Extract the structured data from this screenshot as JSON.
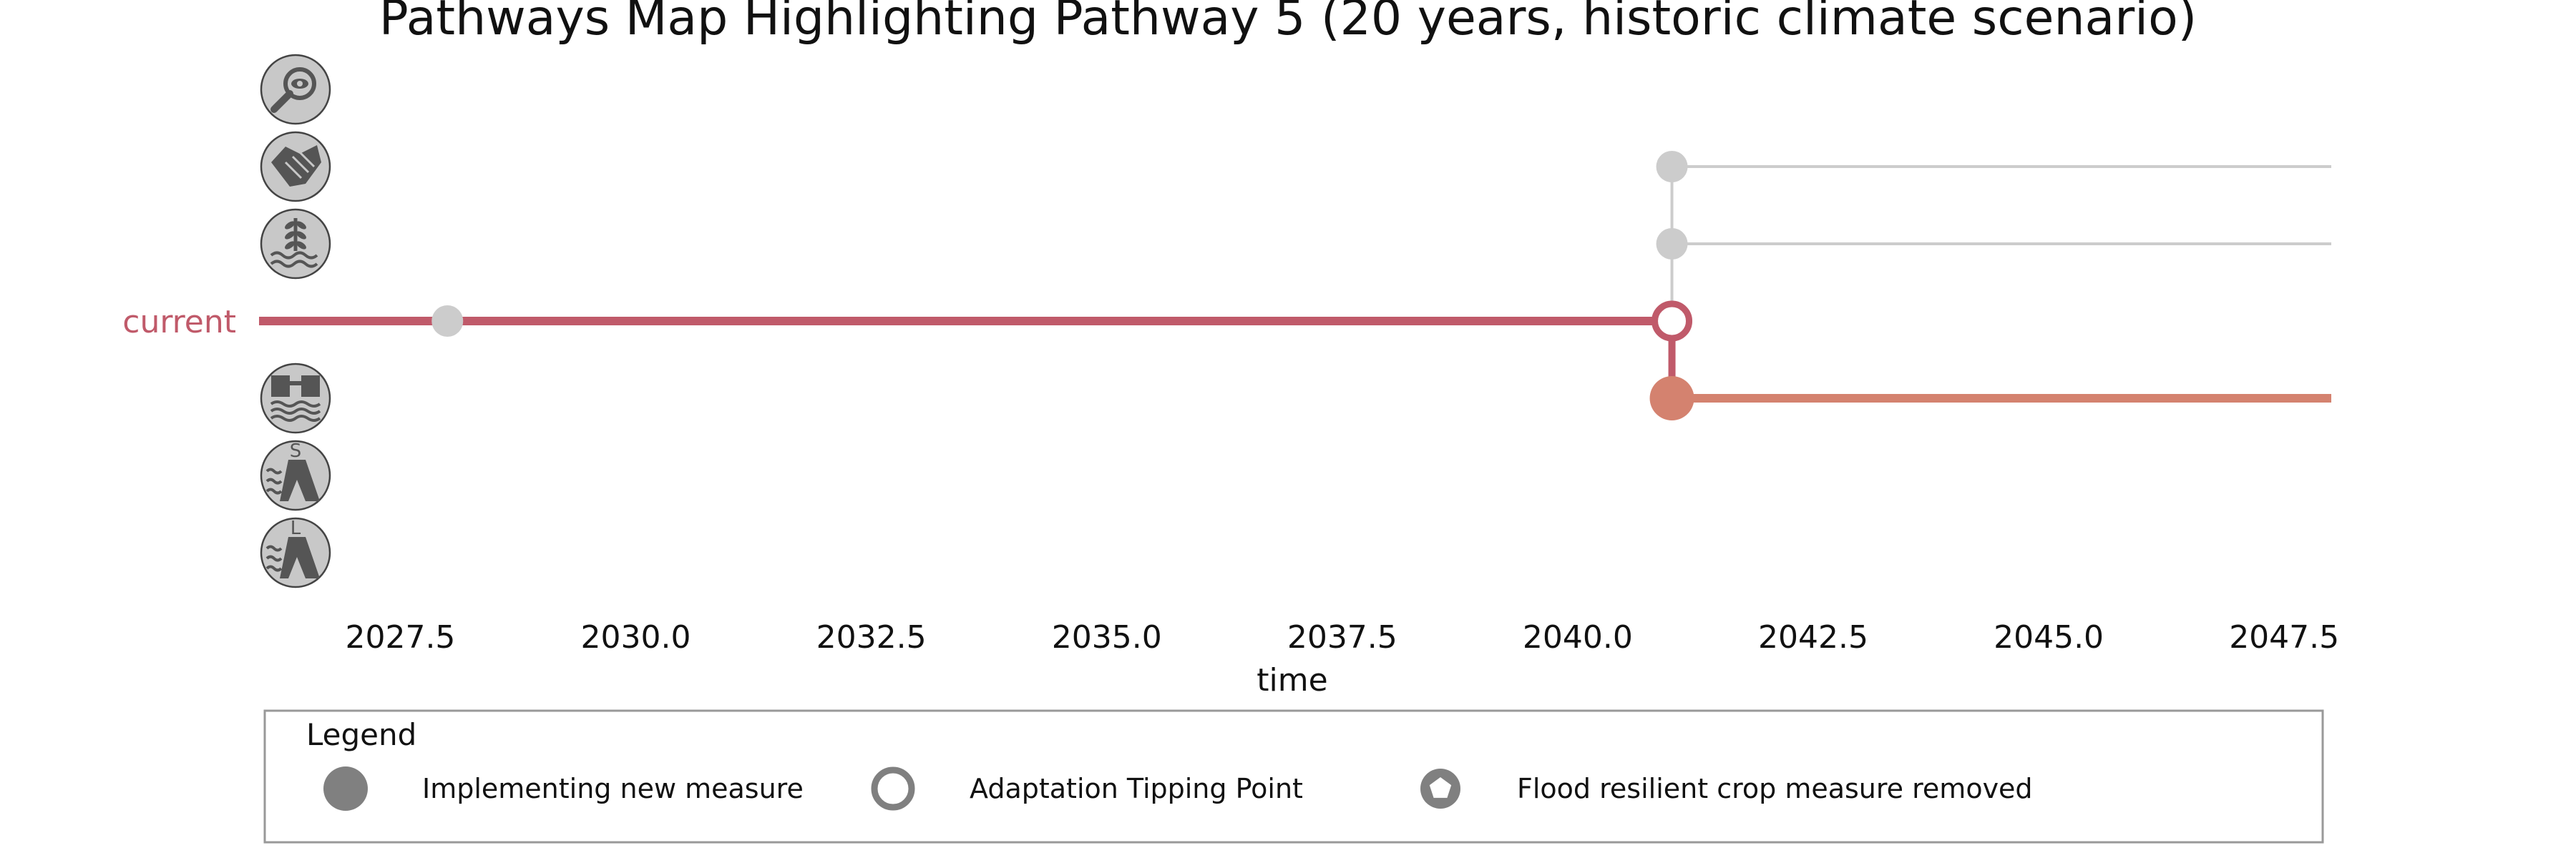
{
  "chart_data": {
    "type": "line",
    "title": "Pathways Map Highlighting Pathway 5 (20 years, historic climate scenario)",
    "xlabel": "time",
    "ylabel": "",
    "xlim": [
      2026.0,
      2048.0
    ],
    "x_ticks": [
      "2027.5",
      "2030.0",
      "2032.5",
      "2035.0",
      "2037.5",
      "2040.0",
      "2042.5",
      "2045.0",
      "2047.5"
    ],
    "x_tick_values": [
      2027.5,
      2030.0,
      2032.5,
      2035.0,
      2037.5,
      2040.0,
      2042.5,
      2045.0,
      2047.5
    ],
    "current_label": "current",
    "rows": [
      {
        "key": "monitoring",
        "icon": "magnifier-eye-icon"
      },
      {
        "key": "cooperation",
        "icon": "handshake-icon"
      },
      {
        "key": "flood_resilient_crops",
        "icon": "crop-water-icon"
      },
      {
        "key": "current",
        "icon": null
      },
      {
        "key": "floodwall",
        "icon": "floodwall-icon"
      },
      {
        "key": "small_dike",
        "icon": "small-dike-icon",
        "icon_letter": "S"
      },
      {
        "key": "large_dike",
        "icon": "large-dike-icon",
        "icon_letter": "L"
      }
    ],
    "segments": [
      {
        "row": "current",
        "x": [
          2026.0,
          2041.0
        ],
        "color": "#c05a6a",
        "highlight": true
      },
      {
        "row": "cooperation",
        "x": [
          2041.0,
          2048.0
        ],
        "color": "#cccccc",
        "highlight": false
      },
      {
        "row": "flood_resilient_crops",
        "x": [
          2041.0,
          2048.0
        ],
        "color": "#cccccc",
        "highlight": false
      },
      {
        "row": "floodwall",
        "x": [
          2041.0,
          2048.0
        ],
        "color": "#d4826f",
        "highlight": true
      }
    ],
    "transitions": [
      {
        "x": 2041.0,
        "from": "cooperation",
        "to": "current",
        "color": "#cccccc",
        "highlight": false
      },
      {
        "x": 2041.0,
        "from": "current",
        "to": "floodwall",
        "color": "#c05a6a",
        "highlight": true
      }
    ],
    "markers": [
      {
        "row": "current",
        "x": 2028.0,
        "kind": "implementing",
        "color": "#cccccc"
      },
      {
        "row": "cooperation",
        "x": 2041.0,
        "kind": "implementing",
        "color": "#cccccc"
      },
      {
        "row": "flood_resilient_crops",
        "x": 2041.0,
        "kind": "implementing",
        "color": "#cccccc"
      },
      {
        "row": "current",
        "x": 2041.0,
        "kind": "tipping_point",
        "color": "#c05a6a"
      },
      {
        "row": "floodwall",
        "x": 2041.0,
        "kind": "implementing",
        "color": "#d4826f"
      }
    ],
    "colors": {
      "current": "#c05a6a",
      "highlight": "#d4826f",
      "inactive": "#cccccc",
      "icon_fill": "#c8c8c8",
      "icon_ink": "#555555",
      "legend_marker": "#808080",
      "legend_border": "#999999"
    },
    "legend": {
      "title": "Legend",
      "placement": "bottom",
      "items": [
        {
          "label": "Implementing new measure",
          "marker": "filled-circle"
        },
        {
          "label": "Adaptation Tipping Point",
          "marker": "hollow-circle"
        },
        {
          "label": "Flood resilient crop measure removed",
          "marker": "hollow-pentagon"
        }
      ]
    }
  }
}
